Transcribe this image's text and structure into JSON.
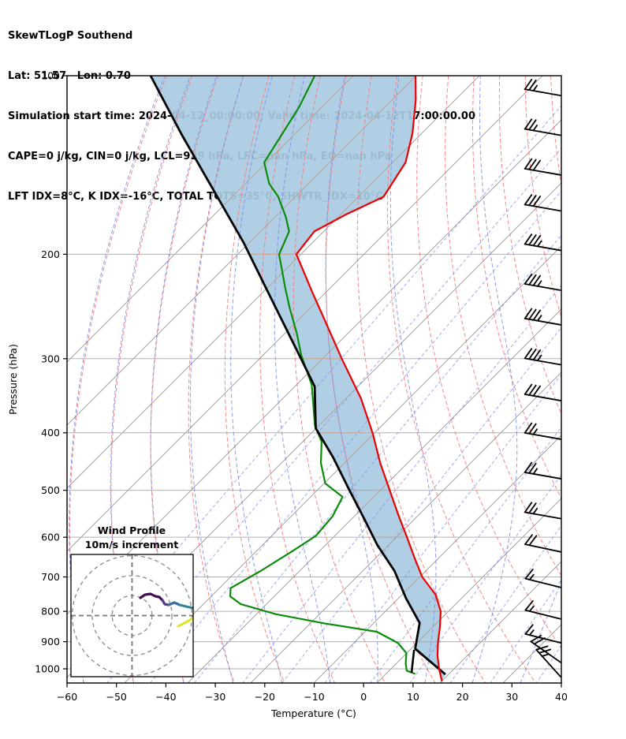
{
  "header": {
    "line1": "SkewTLogP Southend",
    "line2": "Lat: 51.57   Lon: 0.70",
    "line3": "Simulation start time: 2024-04-12_00:00:00, Valid time: 2024-04-12T17:00:00.00",
    "line4": "CAPE=0 j/kg, CIN=0 j/kg, LCL=929 hPa, LFC=nan hPa, EQ=nan hPa",
    "line5": "LFT IDX=8°C, K IDX=-16°C, TOTAL TOTS=35°C, SHWTR_IDX=10°C"
  },
  "chart_data": {
    "type": "line",
    "title": "SkewTLogP Southend",
    "xlabel": "Temperature (°C)",
    "ylabel": "Pressure (hPa)",
    "x_ticks": [
      "−60",
      "−50",
      "−40",
      "−30",
      "−20",
      "−10",
      "0",
      "10",
      "20",
      "30",
      "40"
    ],
    "x_tick_values": [
      -60,
      -50,
      -40,
      -30,
      -20,
      -10,
      0,
      10,
      20,
      30,
      40
    ],
    "y_ticks": [
      100,
      200,
      300,
      400,
      500,
      600,
      700,
      800,
      900,
      1000
    ],
    "xlim": [
      -60,
      40
    ],
    "plim": [
      100,
      1057
    ],
    "skew_deg": 45,
    "grid": "skew-t background: isotherms, dry adiabats, moist adiabats, mixing-ratio lines",
    "series": [
      {
        "name": "temperature",
        "color": "#ee0000",
        "points": [
          [
            100,
            -112.3
          ],
          [
            110,
            -107.3
          ],
          [
            125,
            -101.3
          ],
          [
            140,
            -96.8
          ],
          [
            150,
            -95.5
          ],
          [
            160,
            -94.3
          ],
          [
            171,
            -98.2
          ],
          [
            183,
            -101.3
          ],
          [
            200,
            -100.3
          ],
          [
            212,
            -96.0
          ],
          [
            233,
            -89.0
          ],
          [
            250,
            -83.7
          ],
          [
            300,
            -70.0
          ],
          [
            350,
            -58.1
          ],
          [
            400,
            -48.8
          ],
          [
            450,
            -41.1
          ],
          [
            500,
            -33.7
          ],
          [
            550,
            -27.0
          ],
          [
            600,
            -20.7
          ],
          [
            650,
            -15.0
          ],
          [
            700,
            -9.6
          ],
          [
            750,
            -3.3
          ],
          [
            800,
            1.1
          ],
          [
            850,
            4.1
          ],
          [
            900,
            6.7
          ],
          [
            950,
            9.4
          ],
          [
            1000,
            12.4
          ],
          [
            1050,
            15.5
          ]
        ]
      },
      {
        "name": "dewpoint",
        "color": "#0a8c0a",
        "points": [
          [
            100,
            -132.7
          ],
          [
            113,
            -129.5
          ],
          [
            140,
            -125.4
          ],
          [
            152,
            -120.1
          ],
          [
            160,
            -115.6
          ],
          [
            173,
            -110.0
          ],
          [
            183,
            -106.4
          ],
          [
            200,
            -103.8
          ],
          [
            227,
            -96.0
          ],
          [
            246,
            -90.9
          ],
          [
            272,
            -84.2
          ],
          [
            296,
            -78.9
          ],
          [
            332,
            -70.8
          ],
          [
            389,
            -61.9
          ],
          [
            414,
            -57.3
          ],
          [
            450,
            -53.1
          ],
          [
            487,
            -48.1
          ],
          [
            513,
            -41.9
          ],
          [
            553,
            -40.0
          ],
          [
            597,
            -39.4
          ],
          [
            634,
            -41.1
          ],
          [
            684,
            -43.5
          ],
          [
            731,
            -46.1
          ],
          [
            755,
            -44.5
          ],
          [
            778,
            -40.8
          ],
          [
            809,
            -31.6
          ],
          [
            838,
            -20.1
          ],
          [
            866,
            -7.7
          ],
          [
            905,
            -1.1
          ],
          [
            941,
            2.6
          ],
          [
            980,
            4.6
          ],
          [
            1007,
            6.2
          ],
          [
            1020,
            8.6
          ]
        ]
      },
      {
        "name": "parcel",
        "color": "#000000",
        "points": [
          [
            100,
            -165.9
          ],
          [
            126,
            -147.5
          ],
          [
            156,
            -130.0
          ],
          [
            191,
            -113.4
          ],
          [
            234,
            -97.6
          ],
          [
            296,
            -79.3
          ],
          [
            334,
            -69.9
          ],
          [
            393,
            -61.2
          ],
          [
            440,
            -51.8
          ],
          [
            497,
            -42.3
          ],
          [
            557,
            -33.3
          ],
          [
            618,
            -25.2
          ],
          [
            684,
            -16.4
          ],
          [
            760,
            -8.6
          ],
          [
            837,
            -0.8
          ],
          [
            925,
            3.5
          ],
          [
            1022,
            14.8
          ]
        ]
      },
      {
        "name": "lcl-connector",
        "color": "#000000",
        "points": [
          [
            929,
            3.5
          ],
          [
            1015,
            7.6
          ]
        ]
      }
    ],
    "fill_between": {
      "from": "parcel",
      "to": "temperature",
      "color": "#a9cbe2"
    },
    "lcl_hpa": 929,
    "wind_barbs": {
      "units": "m/s",
      "levels": [
        {
          "p": 108,
          "speed": 25,
          "angle": 10
        },
        {
          "p": 126,
          "speed": 25,
          "angle": 10
        },
        {
          "p": 147,
          "speed": 30,
          "angle": 10
        },
        {
          "p": 169,
          "speed": 30,
          "angle": 10
        },
        {
          "p": 197,
          "speed": 35,
          "angle": 10
        },
        {
          "p": 230,
          "speed": 35,
          "angle": 10
        },
        {
          "p": 263,
          "speed": 35,
          "angle": 10
        },
        {
          "p": 307,
          "speed": 35,
          "angle": 10
        },
        {
          "p": 353,
          "speed": 30,
          "angle": 10
        },
        {
          "p": 410,
          "speed": 25,
          "angle": 10
        },
        {
          "p": 478,
          "speed": 25,
          "angle": 10
        },
        {
          "p": 558,
          "speed": 25,
          "angle": 10
        },
        {
          "p": 635,
          "speed": 20,
          "angle": 12
        },
        {
          "p": 729,
          "speed": 15,
          "angle": 14
        },
        {
          "p": 824,
          "speed": 15,
          "angle": 14
        },
        {
          "p": 904,
          "speed": 15,
          "angle": 14
        },
        {
          "p": 975,
          "speed": 20,
          "angle": 35
        },
        {
          "p": 1031,
          "speed": 25,
          "angle": 48
        }
      ]
    }
  },
  "inset": {
    "title_line1": "Wind Profile",
    "title_line2": "10m/s increment",
    "rings_ms": [
      10,
      20,
      30
    ],
    "path_segments": [
      {
        "color": "#430d54",
        "pts": [
          [
            178,
            758
          ],
          [
            184,
            754
          ],
          [
            191,
            753
          ],
          [
            197,
            756
          ],
          [
            202,
            757
          ],
          [
            206,
            761
          ]
        ]
      },
      {
        "color": "#56378e",
        "pts": [
          [
            206,
            761
          ],
          [
            209,
            766
          ],
          [
            214,
            767
          ]
        ]
      },
      {
        "color": "#3c6aa5",
        "pts": [
          [
            214,
            767
          ],
          [
            221,
            764
          ],
          [
            228,
            767
          ]
        ]
      },
      {
        "color": "#2f8592",
        "pts": [
          [
            228,
            767
          ],
          [
            236,
            769
          ],
          [
            245,
            771
          ]
        ]
      },
      {
        "color": "#dfe32b",
        "pts": [
          [
            226,
            794
          ],
          [
            234,
            790
          ],
          [
            241,
            786
          ],
          [
            245,
            783
          ]
        ]
      }
    ]
  },
  "colors": {
    "temperature": "#ee0000",
    "dewpoint": "#0a8c0a",
    "parcel": "#000000",
    "shaded_area": "#a9cbe2",
    "dry_adiabat": "#f87272",
    "moist_adiabat": "#7b8ce8",
    "mixing_ratio": "#7b8ce8",
    "isotherm_grid": "#a3a3a3",
    "isotherm_grid_in_fill": "#c7a18b"
  }
}
